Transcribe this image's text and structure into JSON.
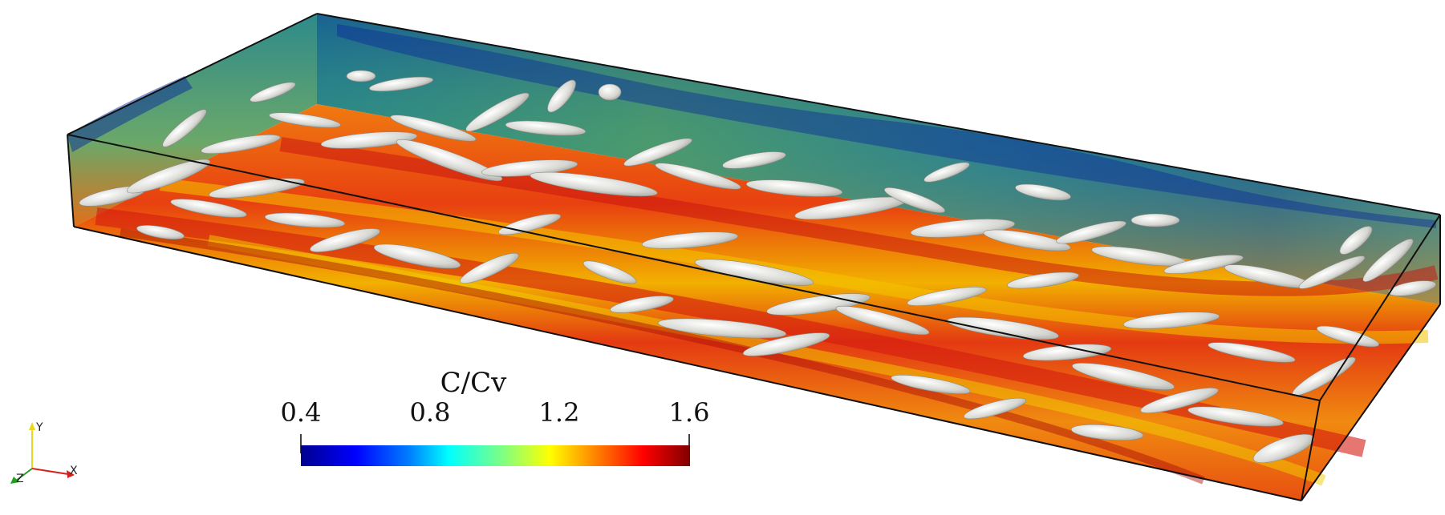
{
  "colorbar": {
    "title": "C/Cv",
    "ticks": [
      "0.4",
      "0.8",
      "1.2",
      "1.6"
    ],
    "range": [
      0.4,
      1.6
    ],
    "colormap": "jet"
  },
  "axes_triad": {
    "x_label": "X",
    "y_label": "Y",
    "z_label": "Z",
    "x_color": "#d62020",
    "y_color": "#e8d820",
    "z_color": "#20a020"
  }
}
